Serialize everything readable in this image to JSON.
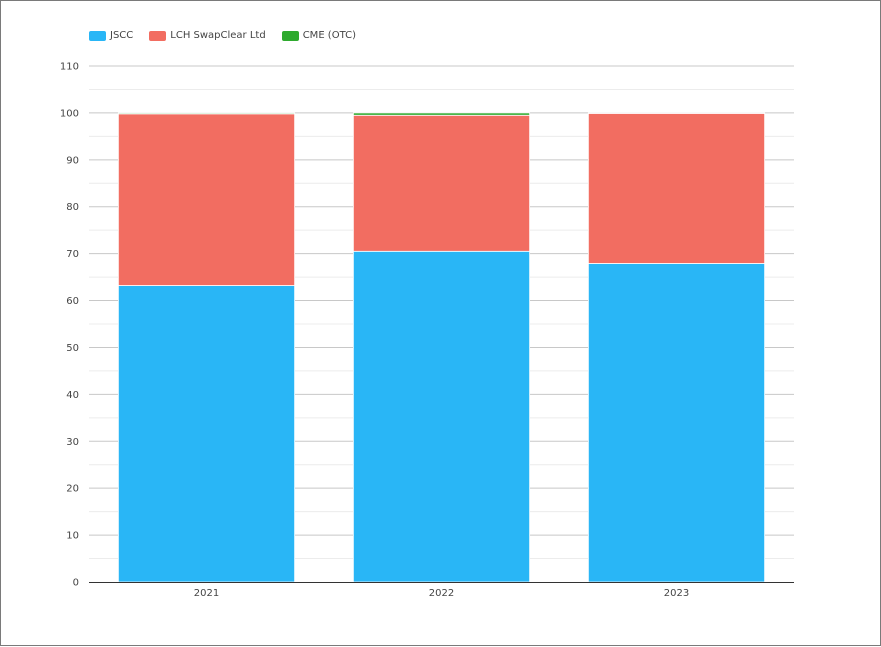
{
  "chart_data": {
    "type": "bar",
    "stacked": true,
    "categories": [
      "2021",
      "2022",
      "2023"
    ],
    "series": [
      {
        "name": "JSCC",
        "color": "#29b6f6",
        "values": [
          63.2,
          70.5,
          67.9
        ]
      },
      {
        "name": "LCH SwapClear Ltd",
        "color": "#f26d61",
        "values": [
          36.6,
          29.0,
          32.0
        ]
      },
      {
        "name": "CME (OTC)",
        "color": "#2eaa2e",
        "values": [
          0.2,
          0.5,
          0.1
        ]
      }
    ],
    "yticks": [
      "0",
      "10",
      "20",
      "30",
      "40",
      "50",
      "60",
      "70",
      "80",
      "90",
      "100",
      "110"
    ],
    "ylim": [
      0,
      110
    ],
    "grid": true,
    "legend_position": "top-left"
  }
}
